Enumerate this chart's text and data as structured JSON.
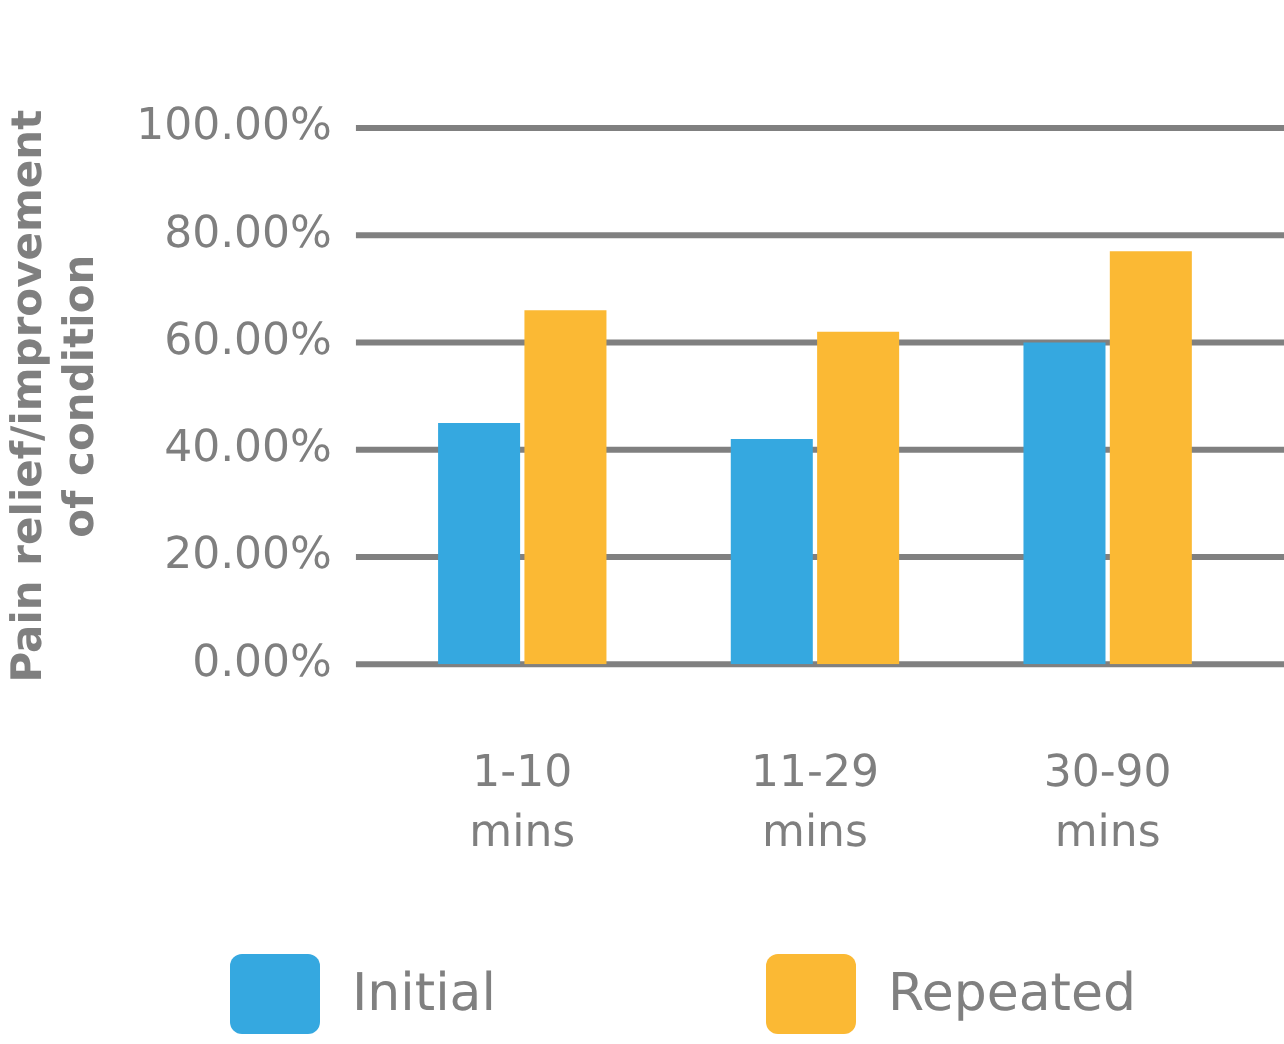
{
  "chart_data": {
    "type": "bar",
    "ylabel": "Pain relief/improvement\nof condition",
    "categories": [
      "1-10 mins",
      "11-29 mins",
      "30-90 mins"
    ],
    "series": [
      {
        "name": "Initial",
        "color": "#35a8e0",
        "values": [
          45,
          42,
          60
        ]
      },
      {
        "name": "Repeated",
        "color": "#fbb934",
        "values": [
          66,
          62,
          77
        ]
      }
    ],
    "ylim": [
      0,
      100
    ],
    "yticks": [
      {
        "value": 0,
        "label": "0.00%"
      },
      {
        "value": 20,
        "label": "20.00%"
      },
      {
        "value": 40,
        "label": "40.00%"
      },
      {
        "value": 60,
        "label": "60.00%"
      },
      {
        "value": 80,
        "label": "80.00%"
      },
      {
        "value": 100,
        "label": "100.00%"
      }
    ],
    "grid": "y",
    "legend": "bottom"
  }
}
